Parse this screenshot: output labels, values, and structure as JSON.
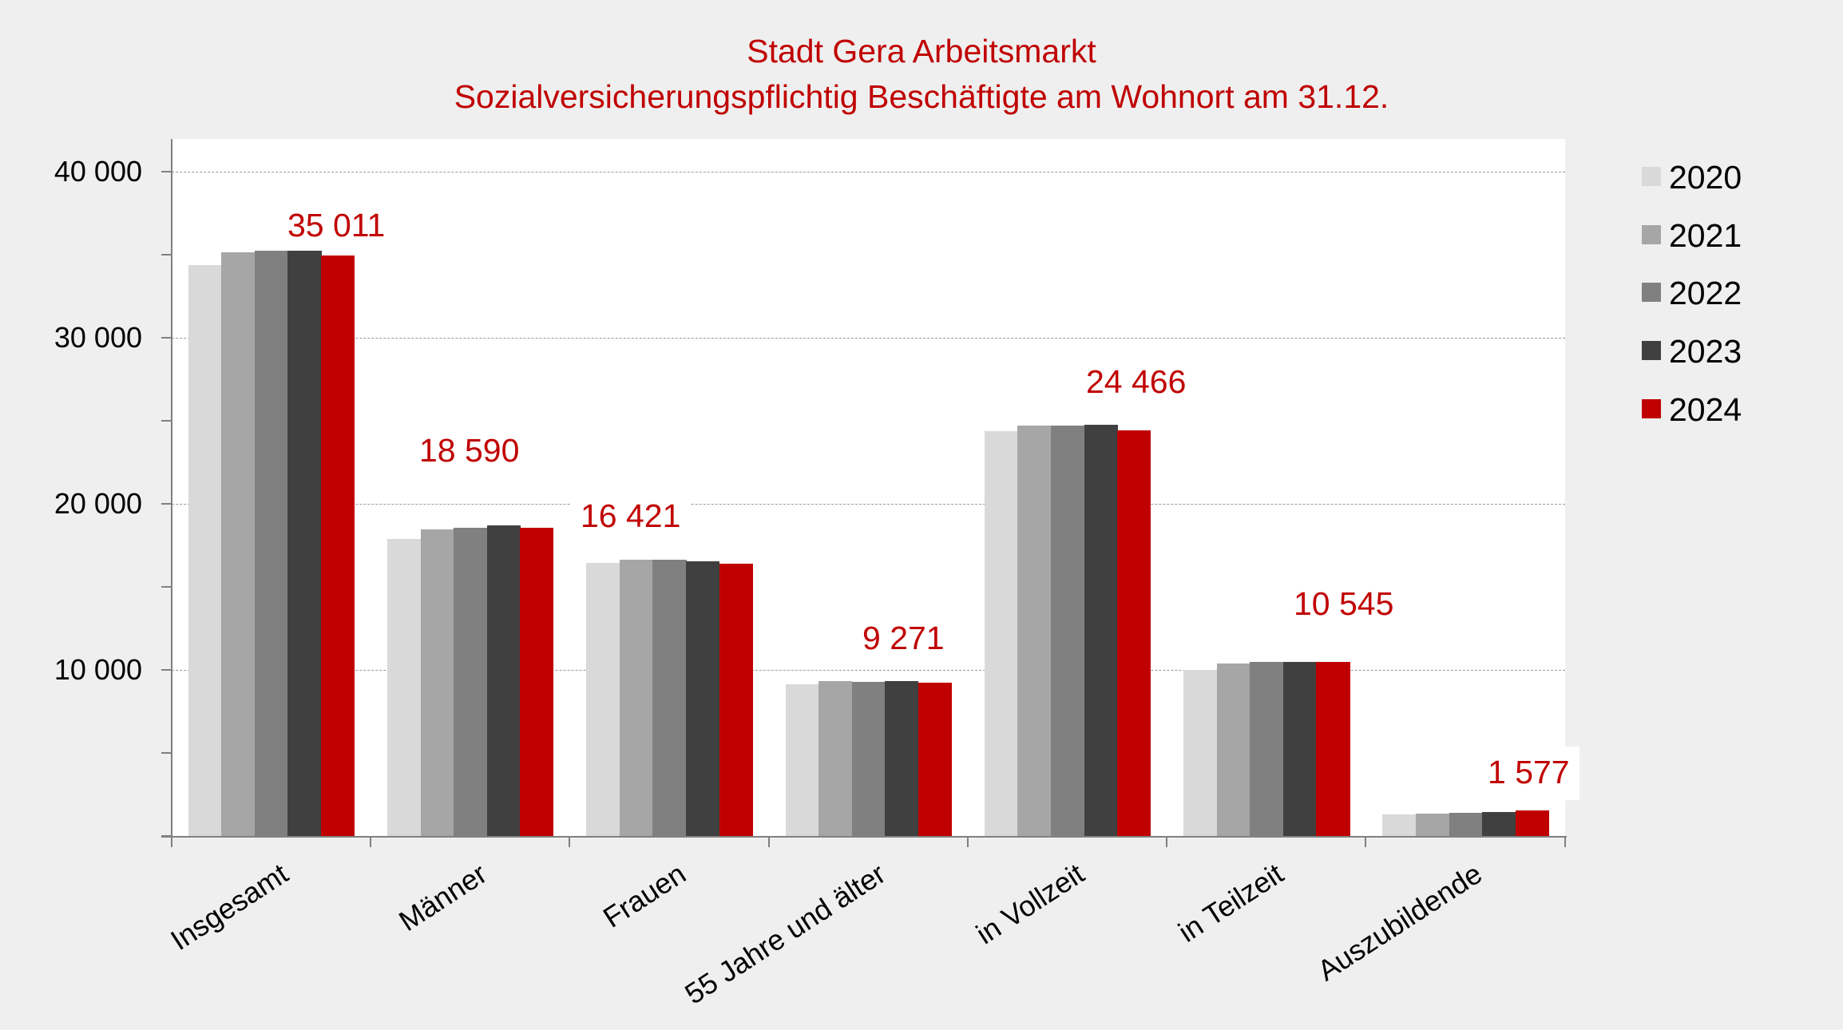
{
  "title": {
    "line1": "Stadt Gera Arbeitsmarkt",
    "line2": "Sozialversicherungspflichtig Beschäftigte am Wohnort am 31.12."
  },
  "colors": {
    "title": "#c00000",
    "2020": "#d9d9d9",
    "2021": "#a6a6a6",
    "2022": "#808080",
    "2023": "#404040",
    "2024": "#c00000",
    "plot_background": "#ffffff",
    "page_background": "#efefef"
  },
  "y_axis": {
    "ticks": [
      "40 000",
      "30 000",
      "20 000",
      "10 000"
    ]
  },
  "legend": {
    "items": [
      {
        "label": "2020",
        "color": "#d9d9d9"
      },
      {
        "label": "2021",
        "color": "#a6a6a6"
      },
      {
        "label": "2022",
        "color": "#808080"
      },
      {
        "label": "2023",
        "color": "#404040"
      },
      {
        "label": "2024",
        "color": "#c00000"
      }
    ]
  },
  "data_labels": [
    "35 011",
    "18 590",
    "16 421",
    "9 271",
    "24 466",
    "10 545",
    "1 577"
  ],
  "chart_data": {
    "type": "bar",
    "title": "Stadt Gera Arbeitsmarkt – Sozialversicherungspflichtig Beschäftigte am Wohnort am 31.12.",
    "xlabel": "",
    "ylabel": "",
    "ylim": [
      0,
      42000
    ],
    "yticks": [
      10000,
      20000,
      30000,
      40000
    ],
    "grid": true,
    "legend_position": "right",
    "categories": [
      "Insgesamt",
      "Männer",
      "Frauen",
      "55 Jahre und älter",
      "in Vollzeit",
      "in Teilzeit",
      "Auszubildende"
    ],
    "series": [
      {
        "name": "2020",
        "values": [
          34420,
          17930,
          16490,
          9180,
          24420,
          10050,
          1350
        ]
      },
      {
        "name": "2021",
        "values": [
          35190,
          18510,
          16680,
          9380,
          24760,
          10430,
          1400
        ]
      },
      {
        "name": "2022",
        "values": [
          35290,
          18610,
          16680,
          9330,
          24760,
          10530,
          1440
        ]
      },
      {
        "name": "2023",
        "values": [
          35340,
          18750,
          16590,
          9380,
          24810,
          10530,
          1490
        ]
      },
      {
        "name": "2024",
        "values": [
          35011,
          18590,
          16421,
          9271,
          24466,
          10545,
          1577
        ]
      }
    ],
    "annotations": [
      "35 011",
      "18 590",
      "16 421",
      "9 271",
      "24 466",
      "10 545",
      "1 577"
    ]
  }
}
